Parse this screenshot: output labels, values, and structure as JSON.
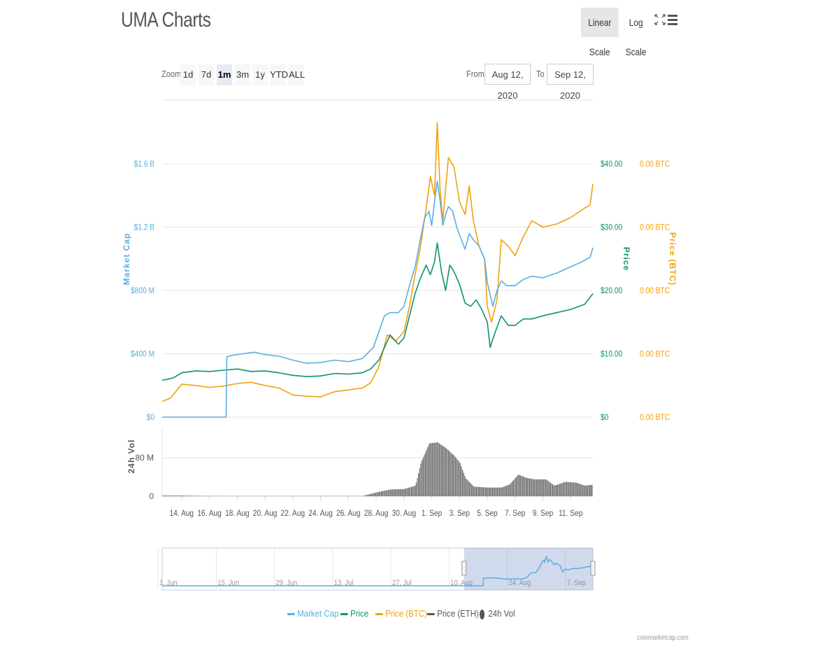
{
  "header": {
    "title": "UMA Charts",
    "linear_scale": "Linear Scale",
    "log_scale": "Log Scale"
  },
  "zoom": {
    "label": "Zoom",
    "buttons": [
      "1d",
      "7d",
      "1m",
      "3m",
      "1y",
      "YTD",
      "ALL"
    ],
    "selected": "1m"
  },
  "range": {
    "from_label": "From",
    "from_value": "Aug 12, 2020",
    "to_label": "To",
    "to_value": "Sep 12, 2020"
  },
  "legend": {
    "items": [
      {
        "label": "Market Cap",
        "color": "#5aafe0"
      },
      {
        "label": "Price",
        "color": "#0f9170"
      },
      {
        "label": "Price (BTC)",
        "color": "#f1a10d"
      },
      {
        "label": "Price (ETH)",
        "color": "#555555"
      },
      {
        "label": "24h Vol",
        "color": "#555555"
      }
    ]
  },
  "credits": "coinmarketcap.com",
  "chart_data": {
    "type": "line",
    "x_tick_labels": [
      "14. Aug",
      "16. Aug",
      "18. Aug",
      "20. Aug",
      "22. Aug",
      "24. Aug",
      "26. Aug",
      "28. Aug",
      "30. Aug",
      "1. Sep",
      "3. Sep",
      "5. Sep",
      "7. Sep",
      "9. Sep",
      "11. Sep"
    ],
    "x_range_days_from_aug1": [
      12.6,
      43.6
    ],
    "axes": {
      "market_cap": {
        "label": "Market Cap",
        "color": "#5aafe0",
        "ticks": [
          "$0",
          "$400 M",
          "$800 M",
          "$1.2 B",
          "$1.6 B"
        ],
        "range": [
          0,
          1600000000
        ]
      },
      "price": {
        "label": "Price",
        "color": "#0f9170",
        "ticks": [
          "$0",
          "$10.00",
          "$20.00",
          "$30.00",
          "$40.00"
        ],
        "range": [
          0,
          40
        ]
      },
      "price_btc": {
        "label": "Price (BTC)",
        "color": "#f1a10d",
        "ticks": [
          "0.00 BTC",
          "0.00 BTC",
          "0.00 BTC",
          "0.00 BTC",
          "0.00 BTC"
        ]
      },
      "volume": {
        "label": "24h Vol",
        "color": "#555555",
        "ticks": [
          "0",
          "80 M"
        ],
        "range": [
          0,
          80000000
        ]
      }
    },
    "series": [
      {
        "name": "Market Cap",
        "axis": "market_cap",
        "points": [
          [
            12.6,
            0
          ],
          [
            17.2,
            0
          ],
          [
            17.25,
            380000000
          ],
          [
            17.6,
            390000000
          ],
          [
            18.4,
            400000000
          ],
          [
            19.2,
            410000000
          ],
          [
            20.0,
            395000000
          ],
          [
            21.0,
            385000000
          ],
          [
            22.0,
            360000000
          ],
          [
            23.0,
            340000000
          ],
          [
            24.0,
            345000000
          ],
          [
            25.0,
            360000000
          ],
          [
            26.0,
            350000000
          ],
          [
            27.0,
            370000000
          ],
          [
            27.8,
            440000000
          ],
          [
            28.2,
            540000000
          ],
          [
            28.6,
            640000000
          ],
          [
            29.0,
            660000000
          ],
          [
            29.6,
            660000000
          ],
          [
            30.0,
            700000000
          ],
          [
            30.4,
            830000000
          ],
          [
            30.8,
            950000000
          ],
          [
            31.2,
            1130000000
          ],
          [
            31.5,
            1260000000
          ],
          [
            31.8,
            1300000000
          ],
          [
            32.0,
            1210000000
          ],
          [
            32.2,
            1360000000
          ],
          [
            32.4,
            1490000000
          ],
          [
            32.6,
            1370000000
          ],
          [
            32.8,
            1210000000
          ],
          [
            33.0,
            1280000000
          ],
          [
            33.2,
            1330000000
          ],
          [
            33.5,
            1300000000
          ],
          [
            33.8,
            1200000000
          ],
          [
            34.0,
            1150000000
          ],
          [
            34.4,
            1060000000
          ],
          [
            34.7,
            1160000000
          ],
          [
            35.0,
            1120000000
          ],
          [
            35.4,
            1080000000
          ],
          [
            35.8,
            1000000000
          ],
          [
            36.0,
            850000000
          ],
          [
            36.4,
            700000000
          ],
          [
            36.7,
            800000000
          ],
          [
            37.0,
            860000000
          ],
          [
            37.4,
            830000000
          ],
          [
            38.0,
            830000000
          ],
          [
            38.6,
            870000000
          ],
          [
            39.2,
            890000000
          ],
          [
            40.0,
            880000000
          ],
          [
            41.0,
            910000000
          ],
          [
            42.0,
            950000000
          ],
          [
            42.8,
            980000000
          ],
          [
            43.4,
            1010000000
          ],
          [
            43.6,
            1070000000
          ]
        ]
      },
      {
        "name": "Price",
        "axis": "price",
        "points": [
          [
            12.6,
            5.8
          ],
          [
            13.4,
            6.2
          ],
          [
            14.0,
            7.0
          ],
          [
            15.0,
            7.3
          ],
          [
            16.0,
            7.2
          ],
          [
            17.0,
            7.4
          ],
          [
            18.0,
            7.6
          ],
          [
            19.0,
            7.2
          ],
          [
            20.0,
            7.3
          ],
          [
            21.0,
            7.0
          ],
          [
            22.0,
            6.6
          ],
          [
            23.0,
            6.4
          ],
          [
            24.0,
            6.5
          ],
          [
            25.0,
            6.9
          ],
          [
            26.0,
            6.8
          ],
          [
            27.0,
            7.0
          ],
          [
            27.6,
            7.6
          ],
          [
            28.2,
            9.0
          ],
          [
            28.6,
            11.0
          ],
          [
            29.0,
            13.0
          ],
          [
            29.6,
            11.5
          ],
          [
            30.0,
            12.5
          ],
          [
            30.4,
            16.0
          ],
          [
            30.8,
            19.5
          ],
          [
            31.2,
            22.0
          ],
          [
            31.6,
            24.0
          ],
          [
            31.9,
            22.5
          ],
          [
            32.2,
            24.5
          ],
          [
            32.4,
            27.5
          ],
          [
            32.7,
            23.0
          ],
          [
            33.0,
            20.0
          ],
          [
            33.3,
            24.0
          ],
          [
            33.6,
            23.0
          ],
          [
            34.0,
            21.0
          ],
          [
            34.4,
            18.0
          ],
          [
            34.8,
            17.5
          ],
          [
            35.2,
            18.5
          ],
          [
            35.6,
            17.0
          ],
          [
            36.0,
            15.0
          ],
          [
            36.2,
            11.0
          ],
          [
            36.5,
            13.0
          ],
          [
            37.0,
            16.0
          ],
          [
            37.5,
            14.5
          ],
          [
            38.0,
            14.5
          ],
          [
            38.6,
            15.5
          ],
          [
            39.2,
            15.5
          ],
          [
            40.0,
            16.0
          ],
          [
            41.0,
            16.5
          ],
          [
            42.0,
            17.0
          ],
          [
            43.0,
            17.8
          ],
          [
            43.6,
            19.5
          ]
        ]
      },
      {
        "name": "Price (BTC)",
        "axis": "price",
        "points": [
          [
            12.6,
            2.5
          ],
          [
            13.2,
            3.0
          ],
          [
            14.0,
            5.2
          ],
          [
            15.0,
            5.0
          ],
          [
            16.0,
            4.7
          ],
          [
            17.0,
            4.9
          ],
          [
            18.0,
            5.3
          ],
          [
            19.0,
            5.5
          ],
          [
            20.0,
            5.0
          ],
          [
            21.0,
            4.6
          ],
          [
            22.0,
            3.5
          ],
          [
            23.0,
            3.3
          ],
          [
            24.0,
            3.2
          ],
          [
            25.0,
            4.0
          ],
          [
            26.0,
            4.3
          ],
          [
            27.0,
            4.6
          ],
          [
            27.6,
            5.4
          ],
          [
            28.2,
            8.0
          ],
          [
            28.8,
            13.0
          ],
          [
            29.4,
            12.0
          ],
          [
            30.0,
            13.5
          ],
          [
            30.4,
            17.5
          ],
          [
            30.8,
            22.5
          ],
          [
            31.2,
            27.0
          ],
          [
            31.6,
            33.0
          ],
          [
            31.9,
            38.0
          ],
          [
            32.2,
            35.0
          ],
          [
            32.4,
            46.5
          ],
          [
            32.6,
            36.0
          ],
          [
            32.8,
            31.0
          ],
          [
            33.2,
            41.0
          ],
          [
            33.6,
            39.5
          ],
          [
            34.0,
            34.0
          ],
          [
            34.4,
            32.0
          ],
          [
            34.7,
            36.5
          ],
          [
            35.0,
            31.0
          ],
          [
            35.4,
            27.0
          ],
          [
            35.8,
            25.0
          ],
          [
            36.0,
            17.5
          ],
          [
            36.3,
            15.0
          ],
          [
            36.7,
            18.5
          ],
          [
            37.0,
            28.0
          ],
          [
            37.5,
            27.0
          ],
          [
            38.0,
            25.5
          ],
          [
            38.6,
            28.5
          ],
          [
            39.2,
            31.0
          ],
          [
            40.0,
            30.0
          ],
          [
            41.0,
            30.5
          ],
          [
            42.0,
            31.5
          ],
          [
            43.0,
            33.0
          ],
          [
            43.4,
            33.5
          ],
          [
            43.6,
            36.8
          ]
        ]
      }
    ],
    "volume_points": [
      [
        12.6,
        1500000
      ],
      [
        14.0,
        1500000
      ],
      [
        15.0,
        800000
      ],
      [
        17.0,
        500000
      ],
      [
        20.0,
        400000
      ],
      [
        27.0,
        600000
      ],
      [
        28.0,
        8000000
      ],
      [
        29.0,
        14000000
      ],
      [
        30.0,
        15000000
      ],
      [
        30.8,
        22000000
      ],
      [
        31.2,
        70000000
      ],
      [
        31.8,
        110000000
      ],
      [
        32.4,
        112000000
      ],
      [
        33.0,
        100000000
      ],
      [
        33.6,
        84000000
      ],
      [
        34.0,
        70000000
      ],
      [
        34.4,
        38000000
      ],
      [
        35.0,
        20000000
      ],
      [
        36.0,
        18000000
      ],
      [
        37.0,
        18000000
      ],
      [
        37.6,
        25000000
      ],
      [
        38.2,
        45000000
      ],
      [
        38.8,
        38000000
      ],
      [
        39.4,
        35000000
      ],
      [
        40.2,
        35000000
      ],
      [
        40.8,
        22000000
      ],
      [
        41.6,
        30000000
      ],
      [
        42.4,
        28000000
      ],
      [
        43.0,
        22000000
      ],
      [
        43.6,
        24000000
      ]
    ],
    "navigator": {
      "tick_labels": [
        "1. Jun",
        "15. Jun",
        "29. Jun",
        "13. Jul",
        "27. Jul",
        "10. Aug",
        "24. Aug",
        "7. Sep"
      ],
      "range_days_from_aug1": [
        -60,
        43.6
      ]
    }
  }
}
